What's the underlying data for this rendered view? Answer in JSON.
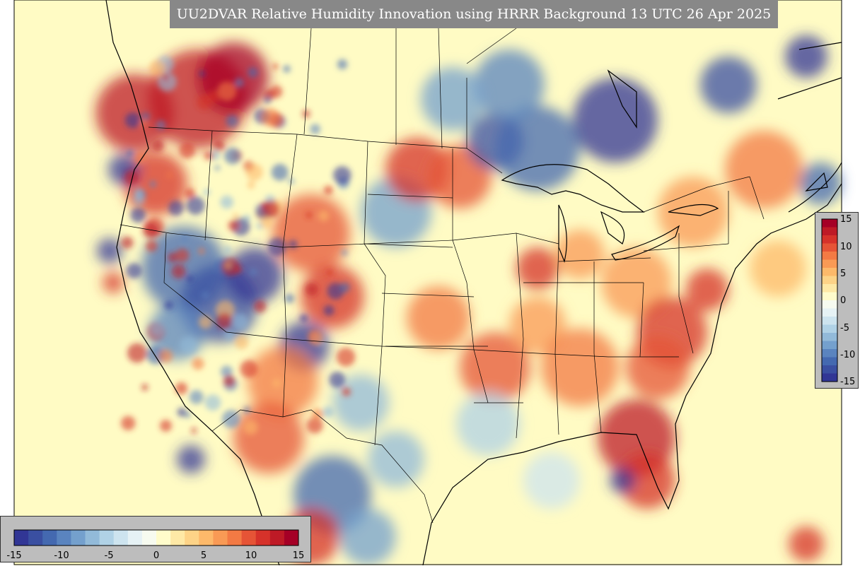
{
  "title": "UU2DVAR Relative Humidity Innovation using HRRR Background 13 UTC 26 Apr 2025",
  "colorbar": {
    "min": -15,
    "max": 15,
    "horizontal_ticks": [
      "-15",
      "-10",
      "-5",
      "0",
      "5",
      "10",
      "15"
    ],
    "vertical_ticks": [
      "15",
      "10",
      "5",
      "0",
      "-5",
      "-10",
      "-15"
    ],
    "colors": [
      "#313695",
      "#3a4fa1",
      "#4469b0",
      "#5a84bf",
      "#74a0cd",
      "#92bad9",
      "#b0d2e6",
      "#cde4ef",
      "#e6f2f5",
      "#f7fbf0",
      "#fffccb",
      "#fee9a6",
      "#fdd387",
      "#fdb96a",
      "#f99a55",
      "#f37a44",
      "#e65436",
      "#d6322a",
      "#be1a26",
      "#a50026"
    ]
  },
  "map": {
    "region": "CONUS",
    "background_color": "#fffbc4",
    "boundary_color": "#000000"
  }
}
